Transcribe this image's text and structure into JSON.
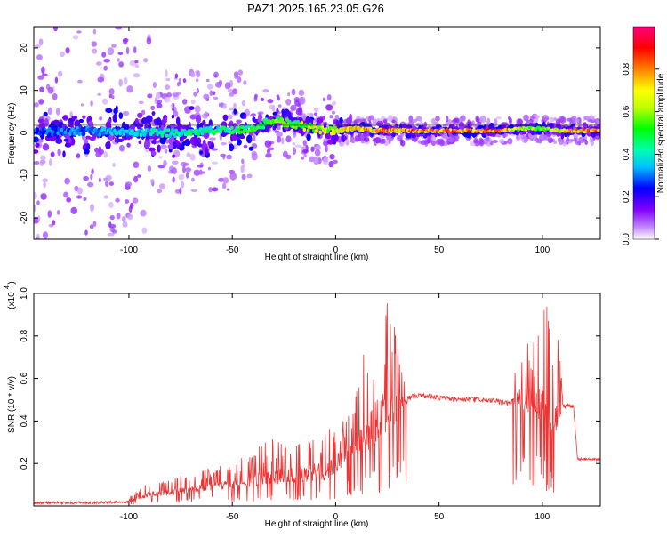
{
  "title": "PAZ1.2025.165.23.05.G26",
  "chart_data": [
    {
      "type": "heatmap",
      "xlabel": "Height of straight line (km)",
      "ylabel": "Frequency (Hz)",
      "xlim": [
        -146,
        128
      ],
      "ylim": [
        -25,
        25
      ],
      "x_ticks": [
        -100,
        -50,
        0,
        50,
        100
      ],
      "x_tick_labels": [
        "-100",
        "-50",
        "0",
        "50",
        "100"
      ],
      "y_ticks": [
        -20,
        -10,
        0,
        10,
        20
      ],
      "y_tick_labels": [
        "-20",
        "-10",
        "0",
        "10",
        "20"
      ],
      "colorbar": {
        "label": "Normalized spectral amplitude",
        "range": [
          0,
          1
        ],
        "ticks": [
          0,
          0.2,
          0.4,
          0.6,
          0.8
        ],
        "tick_labels": [
          "0.0",
          "0.2",
          "0.4",
          "0.6",
          "0.8"
        ],
        "colormap": [
          "#e8e8ff",
          "#8800ff",
          "#0000ff",
          "#00e0ff",
          "#00ff00",
          "#ffff00",
          "#ff8800",
          "#ff0000",
          "#ff00a0"
        ]
      },
      "ridge": {
        "x": [
          -146,
          -120,
          -100,
          -80,
          -60,
          -40,
          -30,
          -20,
          -10,
          0,
          10,
          20,
          40,
          60,
          80,
          90,
          100,
          110,
          128
        ],
        "y": [
          0,
          0.5,
          0,
          0,
          0.5,
          1,
          3,
          2,
          1,
          0.5,
          1,
          0.5,
          0.5,
          0.5,
          0.5,
          1,
          1,
          0.5,
          0.5
        ],
        "amplitude": [
          0.3,
          0.35,
          0.4,
          0.45,
          0.5,
          0.55,
          0.6,
          0.65,
          0.7,
          0.75,
          0.8,
          0.85,
          0.9,
          0.9,
          0.9,
          0.7,
          0.6,
          0.8,
          0.9
        ]
      }
    },
    {
      "type": "line",
      "xlabel": "Height of straight line (km)",
      "ylabel": "SNR (10 * v/v)",
      "scale_label": "(x10",
      "scale_exp": "4",
      "xlim": [
        -146,
        128
      ],
      "ylim": [
        0,
        1.0
      ],
      "x_ticks": [
        -100,
        -50,
        0,
        50,
        100
      ],
      "x_tick_labels": [
        "-100",
        "-50",
        "0",
        "50",
        "100"
      ],
      "y_ticks": [
        0.2,
        0.4,
        0.6,
        0.8,
        1.0
      ],
      "y_tick_labels": [
        "0.2",
        "0.4",
        "0.6",
        "0.8",
        "1.0"
      ],
      "series": [
        {
          "color": "#ee3333",
          "envelope": {
            "x": [
              -146,
              -120,
              -100,
              -95,
              -90,
              -80,
              -70,
              -60,
              -50,
              -40,
              -35,
              -30,
              -20,
              -10,
              -5,
              0,
              5,
              10,
              15,
              20,
              25,
              30,
              33,
              35,
              40,
              50,
              60,
              70,
              80,
              85,
              90,
              95,
              100,
              103,
              105,
              108,
              110,
              115,
              117,
              120,
              128
            ],
            "base": [
              0.015,
              0.015,
              0.02,
              0.03,
              0.04,
              0.05,
              0.06,
              0.07,
              0.08,
              0.09,
              0.1,
              0.1,
              0.1,
              0.12,
              0.12,
              0.15,
              0.2,
              0.2,
              0.25,
              0.3,
              0.35,
              0.4,
              0.45,
              0.51,
              0.52,
              0.51,
              0.5,
              0.5,
              0.49,
              0.48,
              0.45,
              0.42,
              0.4,
              0.3,
              0.3,
              0.4,
              0.47,
              0.47,
              0.22,
              0.22,
              0.22
            ],
            "peak": [
              0.025,
              0.03,
              0.04,
              0.08,
              0.12,
              0.13,
              0.16,
              0.18,
              0.2,
              0.26,
              0.3,
              0.32,
              0.33,
              0.35,
              0.37,
              0.4,
              0.45,
              0.55,
              0.8,
              0.9,
              0.97,
              0.85,
              0.6,
              0.54,
              0.54,
              0.53,
              0.52,
              0.52,
              0.51,
              0.55,
              0.8,
              0.75,
              0.9,
              1.0,
              0.85,
              0.8,
              0.48,
              0.48,
              0.23,
              0.23,
              0.23
            ]
          }
        }
      ]
    }
  ]
}
